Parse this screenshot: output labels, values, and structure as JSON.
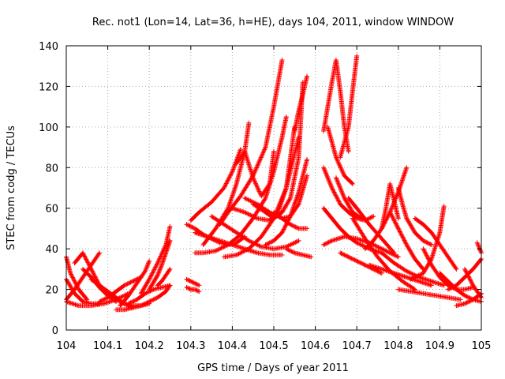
{
  "chart_data": {
    "type": "scatter",
    "title": "Rec. not1 (Lon=14, Lat=36, h=HE), days 104, 2011, window WINDOW",
    "xlabel": "GPS time / Days of year 2011",
    "ylabel": "STEC from codg / TECUs",
    "xlim": [
      104,
      105
    ],
    "ylim": [
      0,
      140
    ],
    "x_ticks": [
      "104",
      "104.1",
      "104.2",
      "104.3",
      "104.4",
      "104.5",
      "104.6",
      "104.7",
      "104.8",
      "104.9",
      "105"
    ],
    "y_ticks": [
      "0",
      "20",
      "40",
      "60",
      "80",
      "100",
      "120",
      "140"
    ],
    "grid": true,
    "marker": "+",
    "color": "#ff0000",
    "series": [
      {
        "x": [
          104.0,
          104.02,
          104.04,
          104.06,
          104.08
        ],
        "values": [
          25,
          18,
          14,
          13,
          13
        ]
      },
      {
        "x": [
          104.0,
          104.01,
          104.03,
          104.05
        ],
        "values": [
          36,
          28,
          20,
          15
        ]
      },
      {
        "x": [
          104.0,
          104.03,
          104.06,
          104.09,
          104.12,
          104.15
        ],
        "values": [
          14,
          12,
          12,
          13,
          15,
          18
        ]
      },
      {
        "x": [
          104.0,
          104.02,
          104.04,
          104.06,
          104.08
        ],
        "values": [
          15,
          20,
          26,
          32,
          38
        ]
      },
      {
        "x": [
          104.02,
          104.04,
          104.06,
          104.08,
          104.1
        ],
        "values": [
          33,
          38,
          30,
          22,
          17
        ]
      },
      {
        "x": [
          104.04,
          104.06,
          104.08,
          104.1,
          104.12
        ],
        "values": [
          30,
          26,
          21,
          17,
          14
        ]
      },
      {
        "x": [
          104.06,
          104.08,
          104.1,
          104.12,
          104.14,
          104.16
        ],
        "values": [
          25,
          22,
          19,
          16,
          13,
          11
        ]
      },
      {
        "x": [
          104.08,
          104.1,
          104.12,
          104.14,
          104.16,
          104.18
        ],
        "values": [
          14,
          16,
          19,
          22,
          24,
          26
        ]
      },
      {
        "x": [
          104.1,
          104.12,
          104.14,
          104.16,
          104.18,
          104.2
        ],
        "values": [
          17,
          15,
          13,
          12,
          12,
          13
        ]
      },
      {
        "x": [
          104.12,
          104.14,
          104.16,
          104.18,
          104.2,
          104.22,
          104.24,
          104.25
        ],
        "values": [
          10,
          10,
          11,
          12,
          14,
          16,
          19,
          22
        ]
      },
      {
        "x": [
          104.13,
          104.15,
          104.17,
          104.19,
          104.2
        ],
        "values": [
          12,
          17,
          23,
          29,
          34
        ]
      },
      {
        "x": [
          104.15,
          104.17,
          104.19,
          104.21,
          104.23,
          104.25
        ],
        "values": [
          13,
          15,
          18,
          20,
          21,
          22
        ]
      },
      {
        "x": [
          104.18,
          104.2,
          104.22,
          104.24,
          104.25
        ],
        "values": [
          18,
          25,
          33,
          42,
          51
        ]
      },
      {
        "x": [
          104.2,
          104.22,
          104.23,
          104.24,
          104.25
        ],
        "values": [
          20,
          27,
          32,
          38,
          44
        ]
      },
      {
        "x": [
          104.22,
          104.23,
          104.24,
          104.25
        ],
        "values": [
          22,
          24,
          27,
          30
        ]
      },
      {
        "x": [
          104.29,
          104.3,
          104.31,
          104.32
        ],
        "values": [
          25,
          24,
          23,
          22
        ]
      },
      {
        "x": [
          104.29,
          104.3,
          104.31,
          104.32
        ],
        "values": [
          21,
          20,
          20,
          19
        ]
      },
      {
        "x": [
          104.29,
          104.31,
          104.33,
          104.35,
          104.37,
          104.39,
          104.41,
          104.43
        ],
        "values": [
          52,
          50,
          47,
          45,
          43,
          42,
          43,
          46
        ]
      },
      {
        "x": [
          104.3,
          104.32,
          104.35,
          104.38,
          104.4,
          104.42
        ],
        "values": [
          54,
          58,
          63,
          70,
          78,
          89
        ]
      },
      {
        "x": [
          104.31,
          104.33,
          104.36,
          104.39,
          104.42,
          104.45,
          104.48,
          104.5,
          104.52,
          104.53
        ],
        "values": [
          38,
          38,
          39,
          42,
          47,
          55,
          65,
          78,
          95,
          105
        ]
      },
      {
        "x": [
          104.31,
          104.34,
          104.37,
          104.4,
          104.43,
          104.46,
          104.49,
          104.52
        ],
        "values": [
          48,
          46,
          44,
          42,
          40,
          38,
          37,
          37
        ]
      },
      {
        "x": [
          104.33,
          104.36,
          104.39,
          104.41,
          104.43,
          104.44
        ],
        "values": [
          42,
          50,
          60,
          72,
          88,
          102
        ]
      },
      {
        "x": [
          104.35,
          104.38,
          104.41,
          104.44,
          104.47,
          104.5,
          104.53,
          104.56
        ],
        "values": [
          56,
          52,
          48,
          44,
          41,
          40,
          41,
          44
        ]
      },
      {
        "x": [
          104.37,
          104.39,
          104.42,
          104.45,
          104.48,
          104.5,
          104.52
        ],
        "values": [
          52,
          58,
          66,
          76,
          90,
          110,
          133
        ]
      },
      {
        "x": [
          104.38,
          104.41,
          104.44,
          104.47,
          104.5,
          104.53,
          104.56
        ],
        "values": [
          36,
          37,
          40,
          46,
          55,
          70,
          95
        ]
      },
      {
        "x": [
          104.4,
          104.43,
          104.46,
          104.49,
          104.51,
          104.53,
          104.55
        ],
        "values": [
          60,
          58,
          55,
          54,
          58,
          70,
          100
        ]
      },
      {
        "x": [
          104.41,
          104.43,
          104.45,
          104.47,
          104.49,
          104.5
        ],
        "values": [
          82,
          88,
          75,
          66,
          72,
          88
        ]
      },
      {
        "x": [
          104.43,
          104.46,
          104.49,
          104.52,
          104.54,
          104.56,
          104.58
        ],
        "values": [
          65,
          62,
          58,
          55,
          56,
          62,
          76
        ]
      },
      {
        "x": [
          104.45,
          104.48,
          104.5,
          104.52,
          104.54,
          104.56,
          104.57
        ],
        "values": [
          62,
          58,
          55,
          58,
          65,
          85,
          122
        ]
      },
      {
        "x": [
          104.48,
          104.5,
          104.52,
          104.54,
          104.56,
          104.58
        ],
        "values": [
          42,
          44,
          48,
          56,
          68,
          84
        ]
      },
      {
        "x": [
          104.5,
          104.52,
          104.54,
          104.56,
          104.58
        ],
        "values": [
          58,
          55,
          52,
          50,
          50
        ]
      },
      {
        "x": [
          104.53,
          104.55,
          104.57,
          104.59
        ],
        "values": [
          40,
          38,
          37,
          36
        ]
      },
      {
        "x": [
          104.55,
          104.56,
          104.57,
          104.58
        ],
        "values": [
          98,
          108,
          116,
          125
        ]
      },
      {
        "x": [
          104.62,
          104.63,
          104.64,
          104.65,
          104.66,
          104.67,
          104.68
        ],
        "values": [
          98,
          110,
          122,
          133,
          118,
          100,
          88
        ]
      },
      {
        "x": [
          104.62,
          104.64,
          104.66,
          104.68,
          104.7,
          104.72,
          104.74
        ],
        "values": [
          80,
          70,
          62,
          58,
          55,
          54,
          56
        ]
      },
      {
        "x": [
          104.62,
          104.64,
          104.66,
          104.68,
          104.7,
          104.73,
          104.76
        ],
        "values": [
          60,
          55,
          50,
          46,
          43,
          40,
          38
        ]
      },
      {
        "x": [
          104.62,
          104.64,
          104.67,
          104.7,
          104.73,
          104.76,
          104.8
        ],
        "values": [
          42,
          44,
          46,
          45,
          43,
          40,
          36
        ]
      },
      {
        "x": [
          104.63,
          104.65,
          104.67,
          104.69
        ],
        "values": [
          100,
          85,
          76,
          72
        ]
      },
      {
        "x": [
          104.65,
          104.67,
          104.69,
          104.71
        ],
        "values": [
          75,
          65,
          58,
          55
        ]
      },
      {
        "x": [
          104.66,
          104.68,
          104.69,
          104.7
        ],
        "values": [
          85,
          100,
          118,
          135
        ]
      },
      {
        "x": [
          104.66,
          104.68,
          104.7,
          104.72,
          104.74,
          104.76
        ],
        "values": [
          38,
          36,
          34,
          32,
          30,
          28
        ]
      },
      {
        "x": [
          104.68,
          104.7,
          104.73,
          104.76,
          104.79
        ],
        "values": [
          65,
          60,
          52,
          45,
          38
        ]
      },
      {
        "x": [
          104.69,
          104.72,
          104.75,
          104.78,
          104.81,
          104.84
        ],
        "values": [
          55,
          45,
          36,
          29,
          24,
          20
        ]
      },
      {
        "x": [
          104.72,
          104.74,
          104.76,
          104.78,
          104.8,
          104.82
        ],
        "values": [
          40,
          44,
          50,
          58,
          68,
          80
        ]
      },
      {
        "x": [
          104.73,
          104.76,
          104.79,
          104.82,
          104.85,
          104.88
        ],
        "values": [
          32,
          30,
          28,
          26,
          24,
          22
        ]
      },
      {
        "x": [
          104.76,
          104.77,
          104.78,
          104.8
        ],
        "values": [
          50,
          60,
          72,
          55
        ]
      },
      {
        "x": [
          104.76,
          104.79,
          104.82,
          104.85,
          104.88,
          104.91
        ],
        "values": [
          38,
          33,
          29,
          26,
          24,
          22
        ]
      },
      {
        "x": [
          104.78,
          104.8,
          104.82,
          104.84,
          104.86
        ],
        "values": [
          58,
          50,
          42,
          35,
          30
        ]
      },
      {
        "x": [
          104.8,
          104.81,
          104.82,
          104.84,
          104.86,
          104.88
        ],
        "values": [
          70,
          62,
          55,
          48,
          44,
          42
        ]
      },
      {
        "x": [
          104.8,
          104.83,
          104.86,
          104.89,
          104.92,
          104.95
        ],
        "values": [
          20,
          19,
          18,
          17,
          16,
          15
        ]
      },
      {
        "x": [
          104.83,
          104.86,
          104.88,
          104.9,
          104.91
        ],
        "values": [
          25,
          28,
          35,
          48,
          61
        ]
      },
      {
        "x": [
          104.84,
          104.86,
          104.88,
          104.9,
          104.92,
          104.94
        ],
        "values": [
          55,
          52,
          48,
          42,
          36,
          30
        ]
      },
      {
        "x": [
          104.86,
          104.88,
          104.9,
          104.92,
          104.94,
          104.96,
          104.98
        ],
        "values": [
          40,
          32,
          26,
          22,
          20,
          20,
          21
        ]
      },
      {
        "x": [
          104.9,
          104.92,
          104.94,
          104.96,
          104.98,
          105.0
        ],
        "values": [
          28,
          24,
          20,
          17,
          15,
          14
        ]
      },
      {
        "x": [
          104.92,
          104.94,
          104.96,
          104.98,
          105.0
        ],
        "values": [
          20,
          22,
          26,
          30,
          35
        ]
      },
      {
        "x": [
          104.94,
          104.96,
          104.98,
          105.0
        ],
        "values": [
          12,
          13,
          15,
          18
        ]
      },
      {
        "x": [
          104.96,
          104.98,
          105.0
        ],
        "values": [
          30,
          22,
          16
        ]
      },
      {
        "x": [
          104.99,
          105.0
        ],
        "values": [
          43,
          38
        ]
      }
    ]
  }
}
